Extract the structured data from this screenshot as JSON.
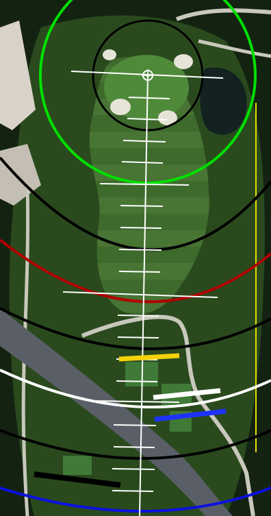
{
  "map": {
    "kind": "golf hole yardage overlay on satellite imagery",
    "colors": {
      "aim_line": "#ffffff",
      "pin_marker": "#ffffff",
      "green_circle": "#00e000",
      "inner_circle": "#000000",
      "distance_arc_black": "#000000",
      "distance_arc_red": "#b00000",
      "distance_arc_white": "#ffffff",
      "distance_arc_blue": "#0a12e0",
      "hazard_line": "#e6e000",
      "tee_yellow": "#f5d20a",
      "tee_white": "#ffffff",
      "tee_blue": "#1e32ff",
      "tee_black": "#000000",
      "fairway": "#3e6a2c",
      "rough": "#2a4a1e",
      "trees": "#142311",
      "road": "#5a5e66",
      "cart_path": "#c8c8bc",
      "bunker": "#e6e4d8",
      "water": "#132221",
      "tee_box": "#3f7a36",
      "rooftop": "#d8d2c8"
    },
    "distance_arcs": [
      "black",
      "red",
      "black",
      "white",
      "black",
      "blue"
    ],
    "tee_markers": [
      "yellow",
      "white",
      "blue",
      "black"
    ],
    "icons": [
      "pin-crosshair-icon"
    ]
  }
}
